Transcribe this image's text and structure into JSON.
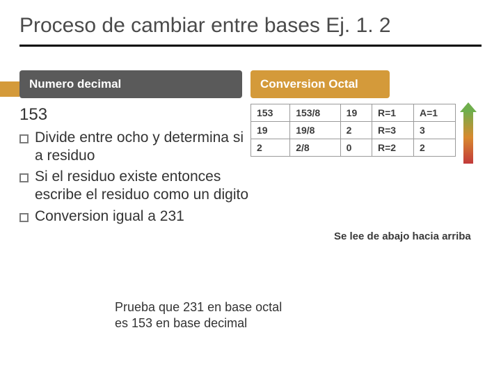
{
  "title": "Proceso de cambiar entre bases Ej. 1. 2",
  "accent_color": "#d49a3a",
  "headers": {
    "left": {
      "label": "Numero decimal",
      "bg": "#5a5a5a"
    },
    "right": {
      "label": "Conversion Octal",
      "bg": "#d49a3a"
    }
  },
  "left": {
    "number": "153",
    "bullets": [
      "Divide entre ocho y determina si a residuo",
      "Si el residuo existe entonces escribe el residuo como un digito",
      "Conversion igual a 231"
    ]
  },
  "table": {
    "rows": [
      [
        "153",
        "153/8",
        "19",
        "R=1",
        "A=1"
      ],
      [
        "19",
        "19/8",
        "2",
        "R=3",
        "3"
      ],
      [
        "2",
        "2/8",
        "0",
        "R=2",
        "2"
      ]
    ]
  },
  "arrow": {
    "gradient_top": "#6fae4c",
    "gradient_mid": "#d88a2f",
    "gradient_bot": "#c23a3a"
  },
  "caption": "Se lee de abajo hacia arriba",
  "overlay": "Prueba que 231 en base octal es 153 en base decimal"
}
